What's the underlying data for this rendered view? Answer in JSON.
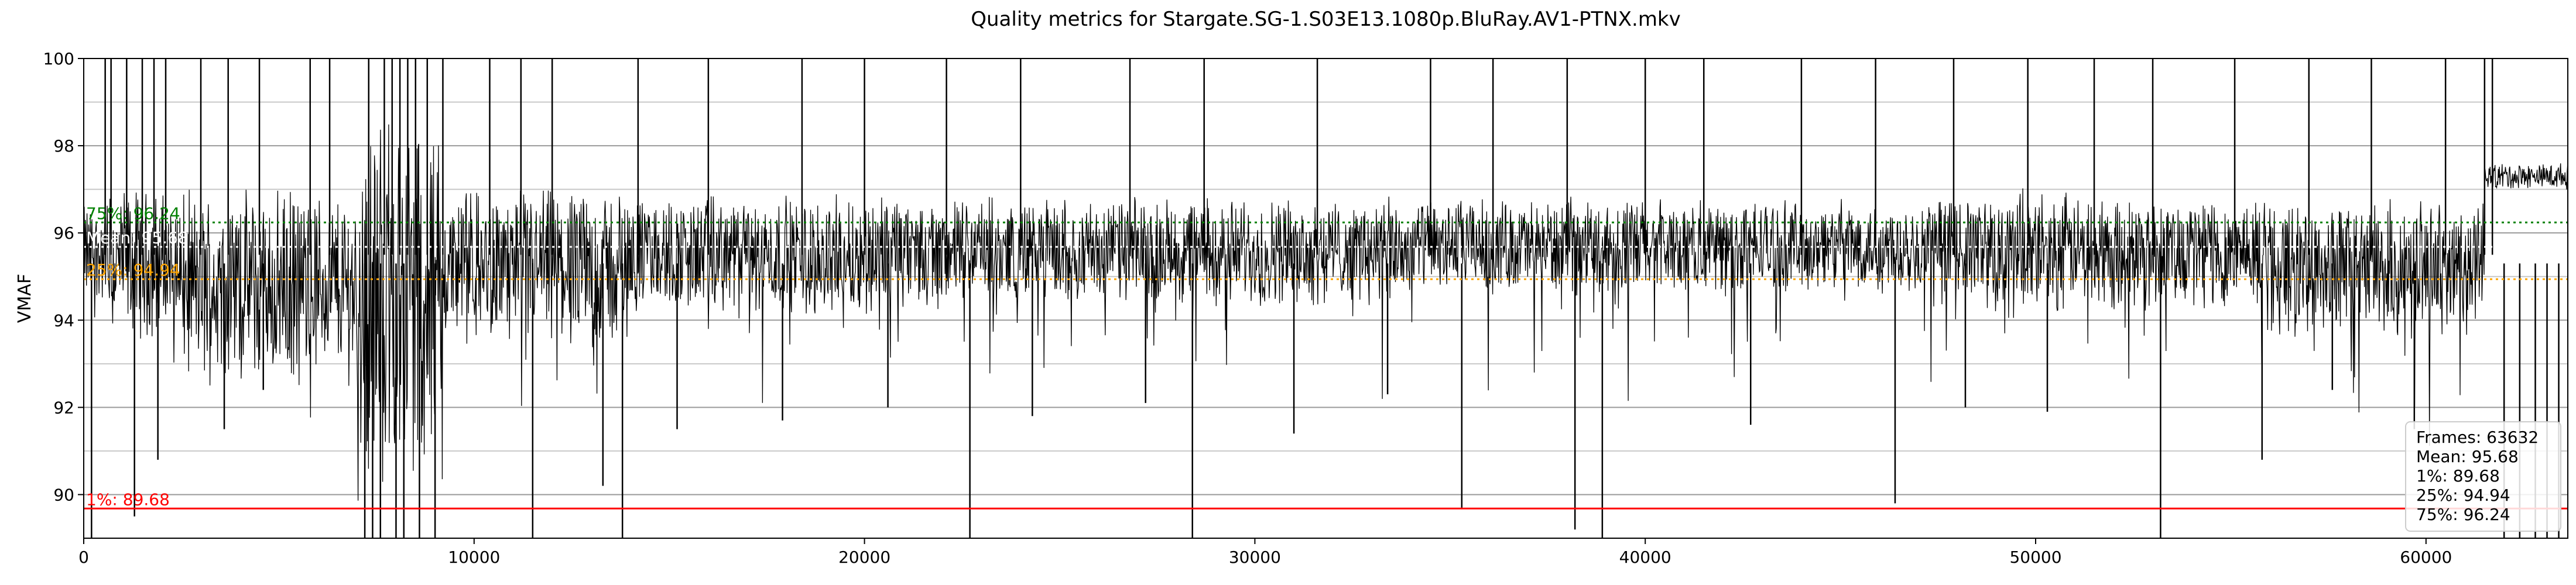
{
  "chart_data": {
    "type": "line",
    "title": "Quality metrics for Stargate.SG-1.S03E13.1080p.BluRay.AV1-PTNX.mkv",
    "xlabel": "",
    "ylabel": "VMAF",
    "xlim": [
      0,
      63632
    ],
    "ylim": [
      89,
      100
    ],
    "x_ticks": [
      0,
      10000,
      20000,
      30000,
      40000,
      50000,
      60000
    ],
    "y_ticks": [
      90,
      92,
      94,
      96,
      98,
      100
    ],
    "y_minor_gridlines": [
      89,
      91,
      93,
      95,
      97,
      99
    ],
    "grid": true,
    "series": [
      {
        "color": "#000000",
        "baseline": 95.6,
        "segments": [
          {
            "x": [
              0,
              600
            ],
            "base": 95.5,
            "amp": 1.0
          },
          {
            "x": [
              600,
              2500
            ],
            "base": 95.3,
            "amp": 1.4
          },
          {
            "x": [
              2500,
              7000
            ],
            "base": 94.8,
            "amp": 1.8
          },
          {
            "x": [
              7000,
              9200
            ],
            "base": 94.5,
            "amp": 3.5
          },
          {
            "x": [
              9200,
              14000
            ],
            "base": 95.2,
            "amp": 1.5
          },
          {
            "x": [
              14000,
              22000
            ],
            "base": 95.5,
            "amp": 1.1
          },
          {
            "x": [
              22000,
              34000
            ],
            "base": 95.6,
            "amp": 1.0
          },
          {
            "x": [
              34000,
              48000
            ],
            "base": 95.7,
            "amp": 0.9
          },
          {
            "x": [
              48000,
              56000
            ],
            "base": 95.6,
            "amp": 1.1
          },
          {
            "x": [
              56000,
              61500
            ],
            "base": 95.2,
            "amp": 1.3
          },
          {
            "x": [
              61500,
              63632
            ],
            "base": 97.3,
            "amp": 0.25
          }
        ],
        "spikes_up": [
          550,
          700,
          1100,
          1500,
          1800,
          2100,
          3000,
          3700,
          4500,
          5800,
          6300,
          7300,
          7700,
          7900,
          8100,
          8300,
          8500,
          8800,
          9200,
          10400,
          11200,
          12000,
          14200,
          16000,
          18400,
          20000,
          22100,
          24000,
          26800,
          28700,
          31600,
          34500,
          36100,
          38000,
          40000,
          41500,
          44000,
          45900,
          47900,
          49800,
          51500,
          53000,
          55100,
          57000,
          58600,
          60500,
          61500,
          61700
        ],
        "spikes_down": [
          200,
          1300,
          1900,
          3600,
          4600,
          7200,
          7400,
          7600,
          8000,
          8200,
          8600,
          9000,
          11500,
          13300,
          13800,
          15200,
          17900,
          20600,
          22700,
          24300,
          27200,
          28400,
          31000,
          33400,
          35300,
          38200,
          38900,
          42700,
          46400,
          48200,
          50300,
          53200,
          55800,
          57600,
          59700,
          62000,
          62400,
          62800,
          63100,
          63400
        ],
        "down_spike_min": [
          89,
          89.5,
          90.8,
          91.5,
          92.4,
          89,
          89,
          89,
          89,
          89,
          89,
          89,
          89,
          90.2,
          89,
          91.5,
          91.7,
          92,
          89,
          91.8,
          92.1,
          89,
          91.4,
          92.3,
          89.7,
          89.2,
          89,
          91.6,
          89.8,
          92,
          91.9,
          89,
          90.8,
          92.4,
          91.5,
          89,
          89,
          89,
          89,
          89
        ]
      }
    ],
    "reference_lines": [
      {
        "name": "1%",
        "value": 89.68,
        "label": "1%: 89.68",
        "color": "#ff0000",
        "style": "solid"
      },
      {
        "name": "25%",
        "value": 94.94,
        "label": "25%: 94.94",
        "color": "#ffa500",
        "style": "dotted"
      },
      {
        "name": "Mean",
        "value": 95.68,
        "label": "Mean: 95.68",
        "color": "#ffffff",
        "style": "dotted"
      },
      {
        "name": "75%",
        "value": 96.24,
        "label": "75%: 96.24",
        "color": "#008000",
        "style": "dotted"
      }
    ],
    "stats_box": {
      "position": "bottom-right",
      "lines": [
        "Frames: 63632",
        "Mean: 95.68",
        "1%: 89.68",
        "25%: 94.94",
        "75%: 96.24"
      ]
    }
  }
}
